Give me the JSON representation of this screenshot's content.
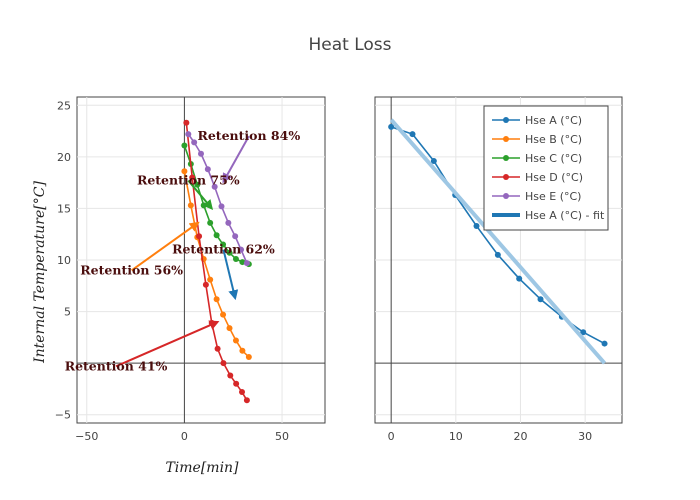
{
  "chart_data": {
    "type": "line",
    "title": "Heat Loss",
    "xlabel": "Time[min]",
    "ylabel": "Internal Temperature[°C]",
    "panels": [
      {
        "id": "left",
        "xlim": [
          -55,
          72
        ],
        "ylim": [
          -5.8,
          25.8
        ],
        "xticks": [
          -50,
          0,
          50
        ],
        "yticks": [
          -5,
          0,
          5,
          10,
          15,
          20,
          25
        ],
        "ytick_labels": [
          "−5",
          "",
          "5",
          "10",
          "15",
          "20",
          "25"
        ],
        "series": [
          {
            "name": "Hse A (°C)",
            "color": "#1f77b4",
            "x": [],
            "y": []
          },
          {
            "name": "Hse B (°C)",
            "color": "#ff7f0e",
            "x": [
              0,
              3.3,
              6.6,
              9.9,
              13.2,
              16.5,
              19.8,
              23.1,
              26.4,
              29.7,
              33
            ],
            "y": [
              18.6,
              15.3,
              12.2,
              10.1,
              8.1,
              6.2,
              4.7,
              3.4,
              2.2,
              1.2,
              0.6
            ]
          },
          {
            "name": "Hse C (°C)",
            "color": "#2ca02c",
            "x": [
              0,
              3.3,
              6.6,
              9.9,
              13.2,
              16.5,
              19.8,
              23.1,
              26.4,
              29.7,
              33
            ],
            "y": [
              21.1,
              19.3,
              17.3,
              15.3,
              13.6,
              12.4,
              11.5,
              10.7,
              10.1,
              9.8,
              9.6
            ]
          },
          {
            "name": "Hse D (°C)",
            "color": "#d62728",
            "x": [
              1,
              4,
              7.5,
              11,
              14,
              17,
              20,
              23.5,
              26.5,
              29.5,
              32
            ],
            "y": [
              23.3,
              18.0,
              12.3,
              7.6,
              3.9,
              1.4,
              0.0,
              -1.2,
              -2.0,
              -2.8,
              -3.6
            ]
          },
          {
            "name": "Hse E (°C)",
            "color": "#9467bd",
            "x": [
              2,
              5,
              8.5,
              12,
              15.5,
              19,
              22.5,
              26,
              29,
              32
            ],
            "y": [
              22.2,
              21.4,
              20.3,
              18.8,
              17.1,
              15.2,
              13.6,
              12.3,
              11.0,
              9.7
            ]
          }
        ],
        "annotations": [
          {
            "text": "Retention 84%",
            "color": "#9467bd",
            "tx": 33,
            "ty": 22.0,
            "hx": 20,
            "hy": 17.6
          },
          {
            "text": "Retention 75%",
            "color": "#2ca02c",
            "tx": 2,
            "ty": 17.7,
            "hx": 14,
            "hy": 15.0
          },
          {
            "text": "Retention 62%",
            "color": "#1f77b4",
            "tx": 20,
            "ty": 11.0,
            "hx": 26,
            "hy": 6.3
          },
          {
            "text": "Retention 56%",
            "color": "#ff7f0e",
            "tx": -27,
            "ty": 9.0,
            "hx": 7,
            "hy": 13.6
          },
          {
            "text": "Retention 41%",
            "color": "#d62728",
            "tx": -35,
            "ty": -0.3,
            "hx": 17,
            "hy": 4.0
          }
        ]
      },
      {
        "id": "right",
        "xlim": [
          -2.5,
          35.7
        ],
        "ylim": [
          -5.8,
          25.8
        ],
        "xticks": [
          0,
          10,
          20,
          30
        ],
        "series": [
          {
            "name": "Hse A (°C)",
            "color": "#1f77b4",
            "x": [
              0,
              3.3,
              6.6,
              9.9,
              13.2,
              16.5,
              19.8,
              23.1,
              26.4,
              29.7,
              33
            ],
            "y": [
              22.9,
              22.2,
              19.6,
              16.3,
              13.3,
              10.5,
              8.2,
              6.2,
              4.5,
              3.0,
              1.9
            ]
          },
          {
            "name": "Hse A (°C) - fit",
            "color": "#9ec7e4",
            "fit": true,
            "x": [
              0,
              33
            ],
            "y": [
              23.6,
              0.0
            ]
          }
        ]
      }
    ],
    "legend": {
      "placement": "top-right",
      "entries": [
        "Hse A (°C)",
        "Hse B (°C)",
        "Hse C (°C)",
        "Hse D (°C)",
        "Hse E (°C)",
        "Hse A (°C) - fit"
      ]
    },
    "grid": true
  }
}
